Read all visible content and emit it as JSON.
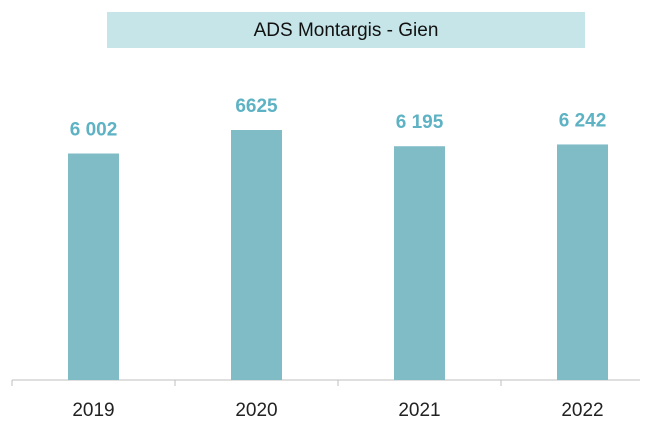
{
  "chart_data": {
    "type": "bar",
    "title": "ADS Montargis - Gien",
    "categories": [
      "2019",
      "2020",
      "2021",
      "2022"
    ],
    "values": [
      6002,
      6625,
      6195,
      6242
    ],
    "value_labels": [
      "6 002",
      "6625",
      "6 195",
      "6 242"
    ],
    "color": "#7fbcc6"
  }
}
